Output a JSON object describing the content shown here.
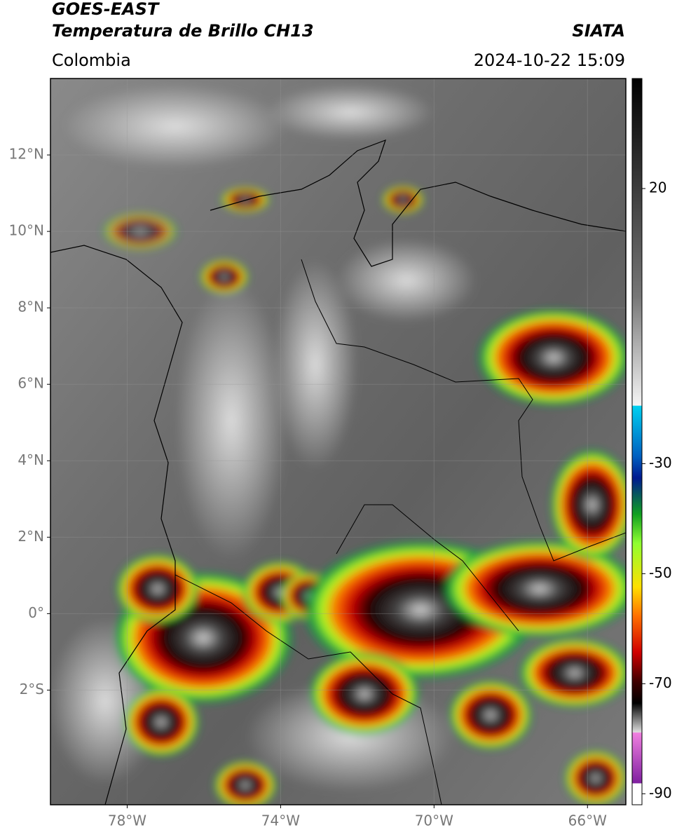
{
  "header": {
    "title": "GOES-EAST",
    "subtitle": "Temperatura de Brillo CH13",
    "agency": "SIATA",
    "region": "Colombia",
    "datetime": "2024-10-22 15:09"
  },
  "map": {
    "lonlim": [
      -80,
      -65
    ],
    "latlim": [
      -5,
      14
    ],
    "grid": true,
    "lat_ticks": [
      {
        "value": 12,
        "label": "12°N"
      },
      {
        "value": 10,
        "label": "10°N"
      },
      {
        "value": 8,
        "label": "8°N"
      },
      {
        "value": 6,
        "label": "6°N"
      },
      {
        "value": 4,
        "label": "4°N"
      },
      {
        "value": 2,
        "label": "2°N"
      },
      {
        "value": 0,
        "label": "0°"
      },
      {
        "value": -2,
        "label": "2°S"
      }
    ],
    "lon_ticks": [
      {
        "value": -78,
        "label": "78°W"
      },
      {
        "value": -74,
        "label": "74°W"
      },
      {
        "value": -70,
        "label": "70°W"
      },
      {
        "value": -66,
        "label": "66°W"
      }
    ]
  },
  "colorbar": {
    "lim": [
      -92,
      40
    ],
    "ticks": [
      20,
      -30,
      -50,
      -70,
      -90
    ]
  }
}
